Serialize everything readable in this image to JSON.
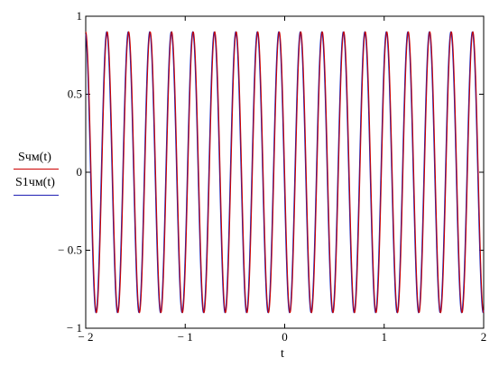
{
  "chart_data": {
    "type": "line",
    "xlabel": "t",
    "xlim": [
      -2,
      2
    ],
    "ylim": [
      -1,
      1
    ],
    "x_ticks": [
      "-2",
      "-1",
      "0",
      "1",
      "2"
    ],
    "y_ticks": [
      "1",
      "0.5",
      "0",
      "-0.5",
      "-1"
    ],
    "grid": false,
    "legend_placement": "left",
    "series": [
      {
        "name": "Sчм(t)",
        "color": "#cc0000",
        "amplitude": 0.9,
        "cycles": 18.5,
        "phase": 0.0
      },
      {
        "name": "S1чм(t)",
        "color": "#1f1fb3",
        "amplitude": 0.9,
        "cycles": 18.5,
        "phase": 0.18
      }
    ]
  }
}
